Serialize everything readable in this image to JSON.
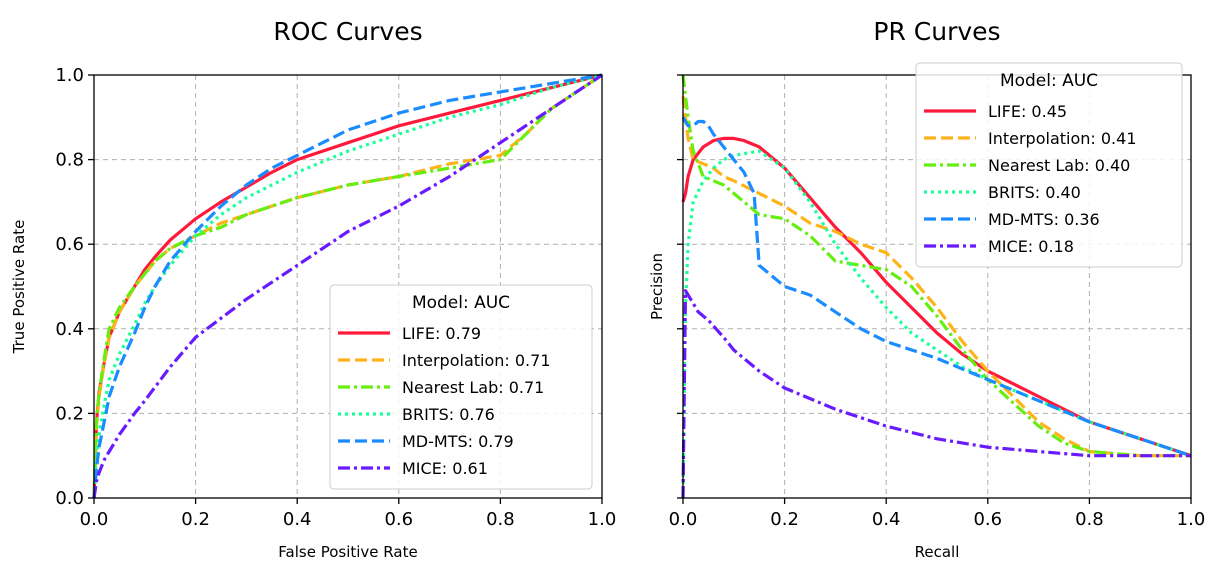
{
  "chart_data": [
    {
      "type": "line",
      "title": "ROC Curves",
      "xlabel": "False Positive Rate",
      "ylabel": "True Positive Rate",
      "xlim": [
        0,
        1
      ],
      "ylim": [
        0,
        1
      ],
      "xticks": [
        "0.0",
        "0.2",
        "0.4",
        "0.6",
        "0.8",
        "1.0"
      ],
      "yticks": [
        "0.0",
        "0.2",
        "0.4",
        "0.6",
        "0.8",
        "1.0"
      ],
      "grid": true,
      "show_ytick_labels": true,
      "legend": {
        "title": "Model: AUC",
        "placement": "lower-right",
        "entries": [
          "LIFE: 0.79",
          "Interpolation: 0.71",
          "Nearest Lab: 0.71",
          "BRITS: 0.76",
          "MD-MTS: 0.79",
          "MICE: 0.61"
        ]
      },
      "series": [
        {
          "name": "LIFE",
          "color": "#ff1a3c",
          "dash": "solid",
          "x": [
            0,
            0.005,
            0.01,
            0.02,
            0.03,
            0.05,
            0.08,
            0.1,
            0.12,
            0.15,
            0.2,
            0.25,
            0.3,
            0.35,
            0.4,
            0.5,
            0.6,
            0.7,
            0.8,
            0.9,
            1.0
          ],
          "y": [
            0,
            0.18,
            0.25,
            0.32,
            0.38,
            0.44,
            0.5,
            0.54,
            0.57,
            0.61,
            0.66,
            0.7,
            0.735,
            0.77,
            0.8,
            0.84,
            0.88,
            0.91,
            0.94,
            0.97,
            1.0
          ]
        },
        {
          "name": "Interpolation",
          "color": "#ffb31a",
          "dash": "dashed",
          "x": [
            0,
            0.005,
            0.01,
            0.02,
            0.03,
            0.05,
            0.08,
            0.1,
            0.12,
            0.15,
            0.2,
            0.25,
            0.3,
            0.4,
            0.5,
            0.6,
            0.7,
            0.8,
            0.85,
            0.9,
            1.0
          ],
          "y": [
            0,
            0.17,
            0.24,
            0.32,
            0.38,
            0.44,
            0.5,
            0.53,
            0.56,
            0.59,
            0.62,
            0.65,
            0.67,
            0.71,
            0.74,
            0.76,
            0.79,
            0.81,
            0.86,
            0.92,
            1.0
          ]
        },
        {
          "name": "Nearest Lab",
          "color": "#66ee11",
          "dash": "dashdot",
          "x": [
            0,
            0.005,
            0.01,
            0.02,
            0.03,
            0.05,
            0.08,
            0.1,
            0.12,
            0.15,
            0.2,
            0.25,
            0.3,
            0.4,
            0.5,
            0.6,
            0.7,
            0.8,
            0.85,
            0.9,
            1.0
          ],
          "y": [
            0,
            0.18,
            0.25,
            0.33,
            0.4,
            0.45,
            0.5,
            0.53,
            0.56,
            0.59,
            0.62,
            0.64,
            0.67,
            0.71,
            0.74,
            0.76,
            0.78,
            0.8,
            0.86,
            0.92,
            1.0
          ]
        },
        {
          "name": "BRITS",
          "color": "#1aff99",
          "dash": "dotted",
          "x": [
            0,
            0.005,
            0.01,
            0.02,
            0.03,
            0.05,
            0.08,
            0.1,
            0.12,
            0.15,
            0.2,
            0.25,
            0.3,
            0.35,
            0.4,
            0.5,
            0.6,
            0.7,
            0.8,
            0.9,
            1.0
          ],
          "y": [
            0,
            0.1,
            0.15,
            0.22,
            0.28,
            0.34,
            0.41,
            0.46,
            0.5,
            0.55,
            0.62,
            0.67,
            0.71,
            0.74,
            0.77,
            0.82,
            0.86,
            0.9,
            0.93,
            0.97,
            1.0
          ]
        },
        {
          "name": "MD-MTS",
          "color": "#1a8cff",
          "dash": "dashed",
          "x": [
            0,
            0.005,
            0.01,
            0.02,
            0.03,
            0.05,
            0.08,
            0.1,
            0.12,
            0.15,
            0.2,
            0.25,
            0.3,
            0.35,
            0.4,
            0.45,
            0.5,
            0.6,
            0.7,
            0.8,
            0.9,
            1.0
          ],
          "y": [
            0,
            0.07,
            0.12,
            0.18,
            0.24,
            0.31,
            0.39,
            0.45,
            0.5,
            0.56,
            0.63,
            0.69,
            0.74,
            0.78,
            0.81,
            0.84,
            0.87,
            0.91,
            0.94,
            0.96,
            0.98,
            1.0
          ]
        },
        {
          "name": "MICE",
          "color": "#6a1aff",
          "dash": "dashdot",
          "x": [
            0,
            0.005,
            0.01,
            0.02,
            0.03,
            0.05,
            0.08,
            0.1,
            0.15,
            0.2,
            0.3,
            0.4,
            0.5,
            0.6,
            0.7,
            0.8,
            0.9,
            1.0
          ],
          "y": [
            0,
            0.04,
            0.06,
            0.09,
            0.11,
            0.15,
            0.2,
            0.23,
            0.31,
            0.38,
            0.47,
            0.55,
            0.63,
            0.69,
            0.76,
            0.84,
            0.92,
            1.0
          ]
        }
      ]
    },
    {
      "type": "line",
      "title": "PR Curves",
      "xlabel": "Recall",
      "ylabel": "Precision",
      "xlim": [
        0,
        1
      ],
      "ylim": [
        0,
        1
      ],
      "xticks": [
        "0.0",
        "0.2",
        "0.4",
        "0.6",
        "0.8",
        "1.0"
      ],
      "yticks": [
        "",
        "",
        "",
        "",
        "",
        ""
      ],
      "grid": true,
      "show_ytick_labels": false,
      "legend": {
        "title": "Model: AUC",
        "placement": "upper-right",
        "entries": [
          "LIFE: 0.45",
          "Interpolation: 0.41",
          "Nearest Lab: 0.40",
          "BRITS: 0.40",
          "MD-MTS: 0.36",
          "MICE: 0.18"
        ]
      },
      "series": [
        {
          "name": "LIFE",
          "color": "#ff1a3c",
          "dash": "solid",
          "x": [
            0,
            0.005,
            0.01,
            0.02,
            0.04,
            0.06,
            0.08,
            0.1,
            0.12,
            0.15,
            0.2,
            0.25,
            0.3,
            0.35,
            0.4,
            0.45,
            0.5,
            0.55,
            0.6,
            0.7,
            0.8,
            0.9,
            1.0
          ],
          "y": [
            0.7,
            0.72,
            0.76,
            0.8,
            0.83,
            0.845,
            0.85,
            0.85,
            0.845,
            0.83,
            0.78,
            0.71,
            0.64,
            0.58,
            0.51,
            0.45,
            0.39,
            0.34,
            0.3,
            0.24,
            0.18,
            0.14,
            0.1
          ]
        },
        {
          "name": "Interpolation",
          "color": "#ffb31a",
          "dash": "dashed",
          "x": [
            0,
            0.005,
            0.01,
            0.02,
            0.04,
            0.06,
            0.08,
            0.1,
            0.15,
            0.2,
            0.25,
            0.3,
            0.35,
            0.4,
            0.45,
            0.5,
            0.55,
            0.6,
            0.7,
            0.75,
            0.8,
            0.9,
            1.0
          ],
          "y": [
            0.95,
            0.9,
            0.85,
            0.8,
            0.79,
            0.78,
            0.76,
            0.75,
            0.72,
            0.69,
            0.65,
            0.63,
            0.6,
            0.58,
            0.52,
            0.45,
            0.37,
            0.3,
            0.18,
            0.14,
            0.11,
            0.1,
            0.1
          ]
        },
        {
          "name": "Nearest Lab",
          "color": "#66ee11",
          "dash": "dashdot",
          "x": [
            0,
            0.005,
            0.01,
            0.02,
            0.04,
            0.06,
            0.08,
            0.1,
            0.12,
            0.15,
            0.2,
            0.25,
            0.3,
            0.35,
            0.4,
            0.45,
            0.5,
            0.55,
            0.6,
            0.7,
            0.75,
            0.8,
            0.9,
            1.0
          ],
          "y": [
            1.0,
            0.95,
            0.9,
            0.82,
            0.76,
            0.75,
            0.74,
            0.72,
            0.7,
            0.67,
            0.66,
            0.62,
            0.56,
            0.55,
            0.54,
            0.5,
            0.43,
            0.35,
            0.28,
            0.17,
            0.13,
            0.11,
            0.1,
            0.1
          ]
        },
        {
          "name": "BRITS",
          "color": "#1aff99",
          "dash": "dotted",
          "x": [
            0,
            0.003,
            0.005,
            0.01,
            0.02,
            0.04,
            0.06,
            0.08,
            0.1,
            0.15,
            0.2,
            0.25,
            0.3,
            0.35,
            0.4,
            0.45,
            0.5,
            0.55,
            0.6,
            0.7,
            0.8,
            0.9,
            1.0
          ],
          "y": [
            0,
            0.3,
            0.45,
            0.6,
            0.7,
            0.75,
            0.78,
            0.8,
            0.81,
            0.82,
            0.78,
            0.7,
            0.6,
            0.52,
            0.45,
            0.39,
            0.35,
            0.31,
            0.28,
            0.23,
            0.18,
            0.14,
            0.1
          ]
        },
        {
          "name": "MD-MTS",
          "color": "#1a8cff",
          "dash": "dashed",
          "x": [
            0,
            0.005,
            0.01,
            0.02,
            0.03,
            0.04,
            0.05,
            0.06,
            0.08,
            0.1,
            0.12,
            0.14,
            0.15,
            0.2,
            0.25,
            0.3,
            0.35,
            0.4,
            0.5,
            0.6,
            0.7,
            0.8,
            0.9,
            1.0
          ],
          "y": [
            0.9,
            0.89,
            0.88,
            0.88,
            0.89,
            0.89,
            0.88,
            0.86,
            0.83,
            0.8,
            0.77,
            0.72,
            0.55,
            0.5,
            0.48,
            0.44,
            0.4,
            0.37,
            0.33,
            0.28,
            0.23,
            0.18,
            0.14,
            0.1
          ]
        },
        {
          "name": "MICE",
          "color": "#6a1aff",
          "dash": "dashdot",
          "x": [
            0,
            0.003,
            0.005,
            0.01,
            0.02,
            0.03,
            0.05,
            0.08,
            0.1,
            0.15,
            0.2,
            0.3,
            0.4,
            0.5,
            0.6,
            0.7,
            0.8,
            0.9,
            1.0
          ],
          "y": [
            0,
            0.3,
            0.49,
            0.48,
            0.46,
            0.44,
            0.42,
            0.38,
            0.35,
            0.3,
            0.26,
            0.21,
            0.17,
            0.14,
            0.12,
            0.11,
            0.1,
            0.1,
            0.1
          ]
        }
      ]
    }
  ]
}
